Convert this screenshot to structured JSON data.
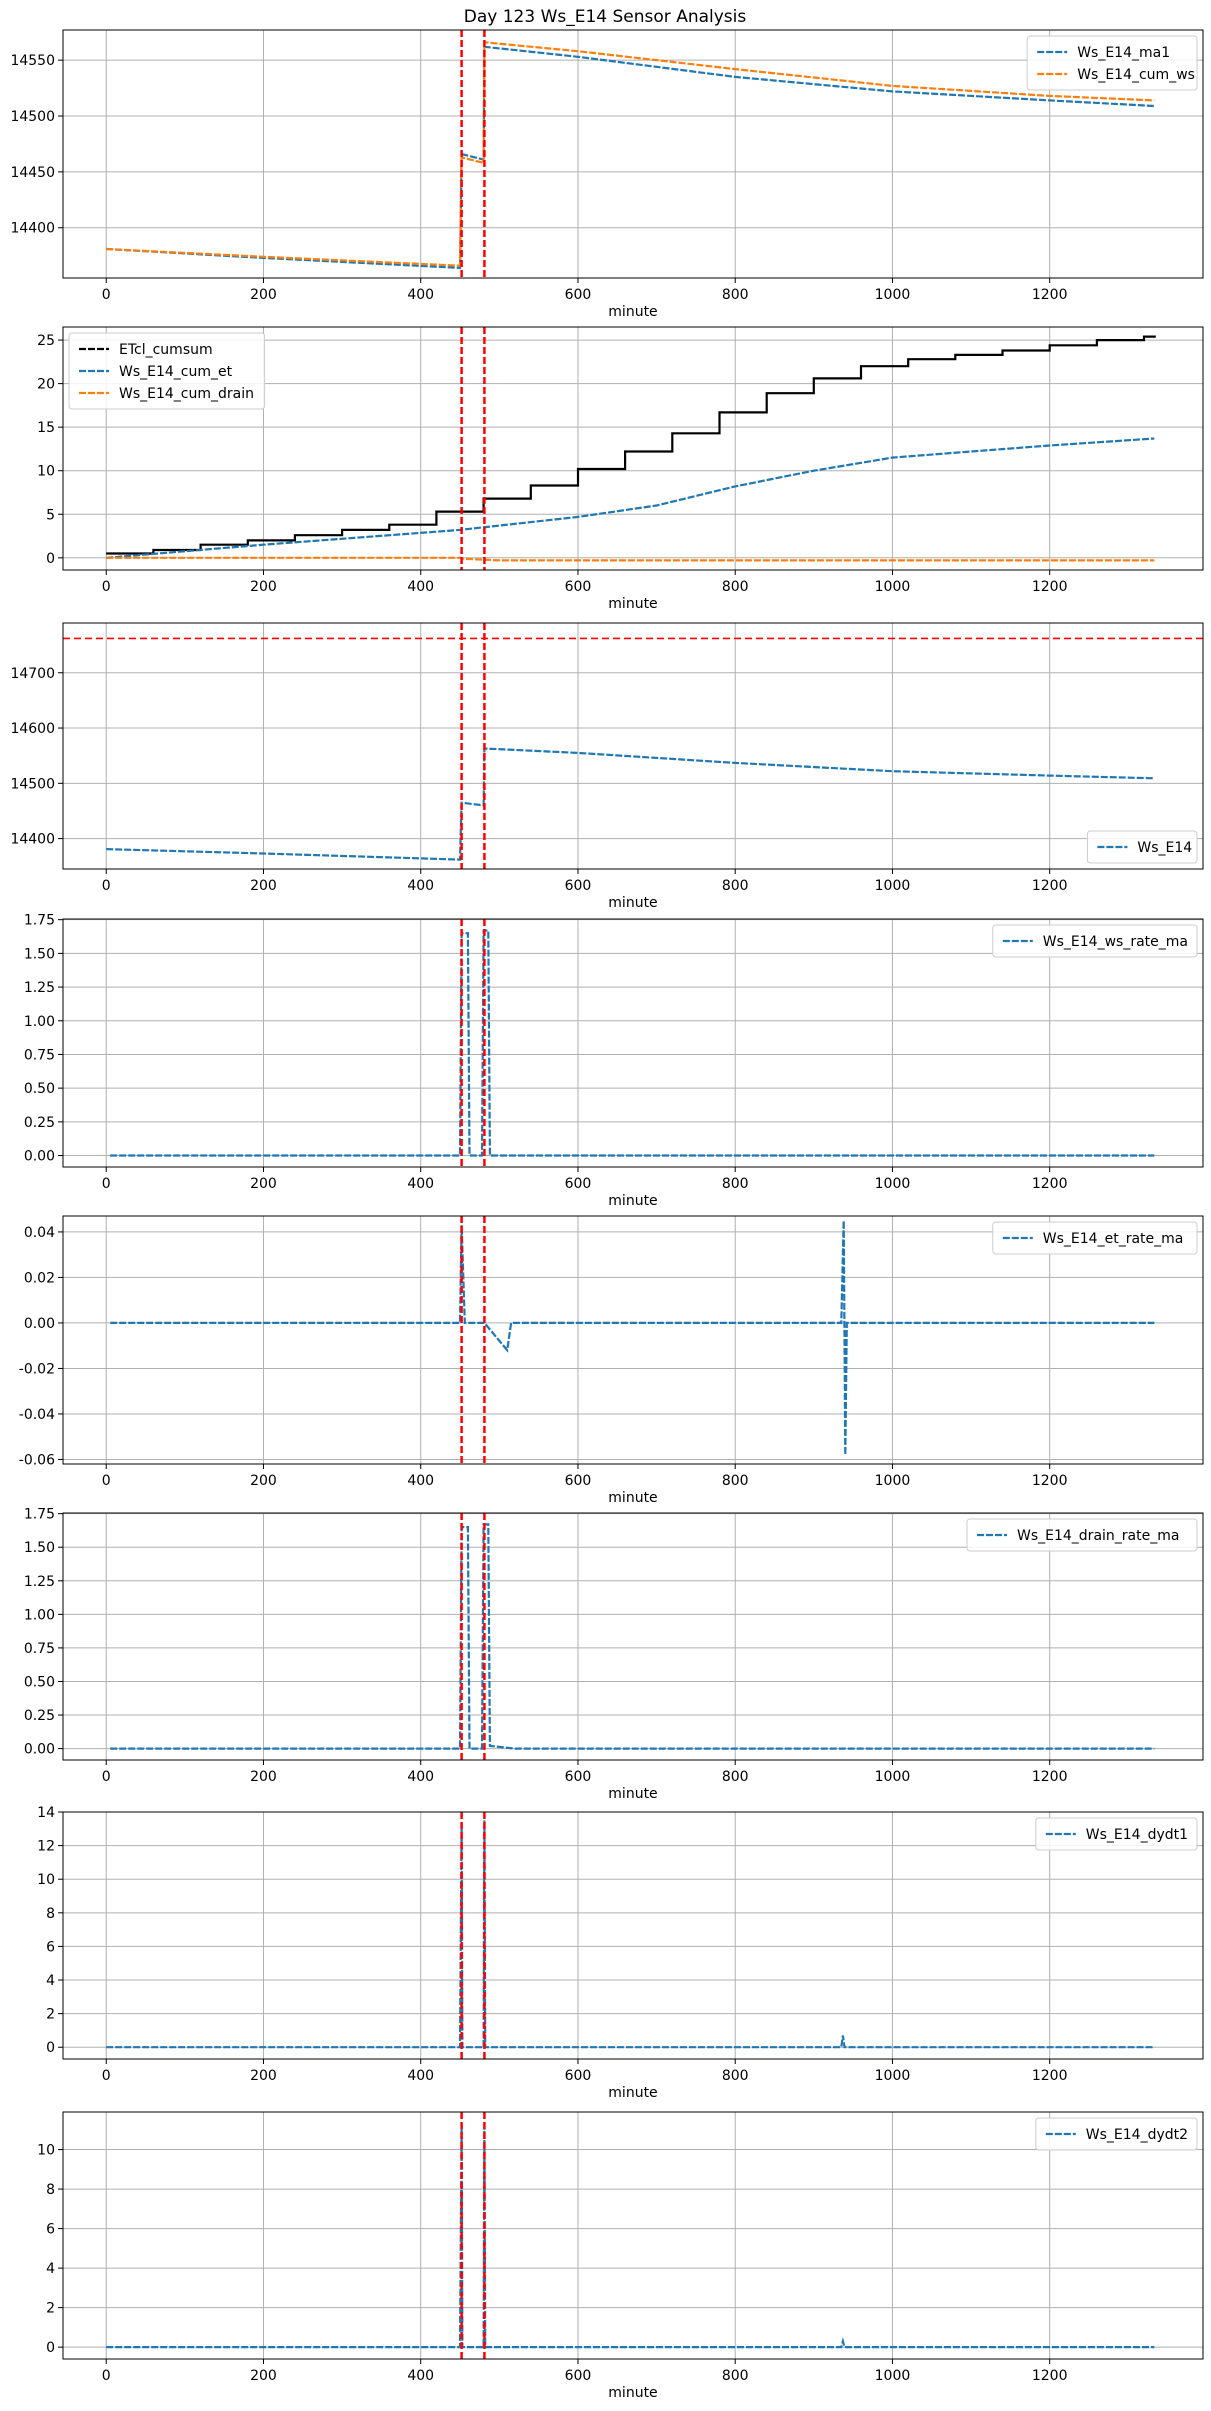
{
  "page_title": "Day 123 Ws_E14 Sensor Analysis",
  "colors": {
    "blue": "#1f77b4",
    "orange": "#ff7f0e",
    "black": "#000000",
    "red": "#ff0000",
    "grid": "#b0b0b0"
  },
  "chart_data": [
    {
      "type": "line",
      "xlabel": "minute",
      "xlim": [
        -55,
        1395
      ],
      "xticks": [
        0,
        200,
        400,
        600,
        800,
        1000,
        1200
      ],
      "ylim": [
        14355,
        14577
      ],
      "yticks": [
        14400,
        14450,
        14500,
        14550
      ],
      "vlines": [
        452,
        481
      ],
      "legend_position": "top-right",
      "series": [
        {
          "name": "Ws_E14_ma1",
          "color": "blue",
          "points": [
            [
              0,
              14381
            ],
            [
              200,
              14373
            ],
            [
              450,
              14364
            ],
            [
              452,
              14466
            ],
            [
              480,
              14461
            ],
            [
              481,
              14562
            ],
            [
              600,
              14553
            ],
            [
              800,
              14535
            ],
            [
              1000,
              14522
            ],
            [
              1200,
              14514
            ],
            [
              1333,
              14509
            ]
          ]
        },
        {
          "name": "Ws_E14_cum_ws",
          "color": "orange",
          "points": [
            [
              0,
              14381
            ],
            [
              200,
              14374
            ],
            [
              450,
              14366
            ],
            [
              452,
              14463
            ],
            [
              480,
              14458
            ],
            [
              481,
              14566
            ],
            [
              600,
              14558
            ],
            [
              800,
              14542
            ],
            [
              1000,
              14527
            ],
            [
              1200,
              14518
            ],
            [
              1333,
              14514
            ]
          ]
        }
      ]
    },
    {
      "type": "line",
      "xlabel": "minute",
      "xlim": [
        -55,
        1395
      ],
      "xticks": [
        0,
        200,
        400,
        600,
        800,
        1000,
        1200
      ],
      "ylim": [
        -1.4,
        26.5
      ],
      "yticks": [
        0,
        5,
        10,
        15,
        20,
        25
      ],
      "vlines": [
        452,
        481
      ],
      "legend_position": "top-left",
      "series": [
        {
          "name": "ETcl_cumsum",
          "color": "black",
          "step": true,
          "points": [
            [
              0,
              0.5
            ],
            [
              60,
              0.9
            ],
            [
              120,
              1.5
            ],
            [
              180,
              2.0
            ],
            [
              240,
              2.6
            ],
            [
              300,
              3.2
            ],
            [
              360,
              3.8
            ],
            [
              420,
              5.3
            ],
            [
              480,
              6.8
            ],
            [
              540,
              8.3
            ],
            [
              600,
              10.2
            ],
            [
              660,
              12.2
            ],
            [
              720,
              14.3
            ],
            [
              780,
              16.7
            ],
            [
              840,
              18.9
            ],
            [
              900,
              20.6
            ],
            [
              960,
              22.0
            ],
            [
              1020,
              22.8
            ],
            [
              1080,
              23.3
            ],
            [
              1140,
              23.8
            ],
            [
              1200,
              24.4
            ],
            [
              1260,
              25.0
            ],
            [
              1320,
              25.4
            ],
            [
              1335,
              25.4
            ]
          ]
        },
        {
          "name": "Ws_E14_cum_et",
          "color": "blue",
          "points": [
            [
              0,
              0
            ],
            [
              200,
              1.5
            ],
            [
              450,
              3.2
            ],
            [
              600,
              4.7
            ],
            [
              700,
              6.0
            ],
            [
              800,
              8.2
            ],
            [
              900,
              10.0
            ],
            [
              1000,
              11.5
            ],
            [
              1100,
              12.2
            ],
            [
              1200,
              12.9
            ],
            [
              1333,
              13.7
            ]
          ]
        },
        {
          "name": "Ws_E14_cum_drain",
          "color": "orange",
          "points": [
            [
              0,
              0
            ],
            [
              450,
              0
            ],
            [
              452,
              -0.1
            ],
            [
              500,
              -0.3
            ],
            [
              1333,
              -0.3
            ]
          ]
        }
      ]
    },
    {
      "type": "line",
      "xlabel": "minute",
      "xlim": [
        -55,
        1395
      ],
      "xticks": [
        0,
        200,
        400,
        600,
        800,
        1000,
        1200
      ],
      "ylim": [
        14345,
        14790
      ],
      "yticks": [
        14400,
        14500,
        14600,
        14700
      ],
      "vlines": [
        452,
        481
      ],
      "hline": 14762,
      "legend_position": "bottom-right",
      "series": [
        {
          "name": "Ws_E14",
          "color": "blue",
          "points": [
            [
              0,
              14381
            ],
            [
              200,
              14373
            ],
            [
              450,
              14362
            ],
            [
              452,
              14465
            ],
            [
              480,
              14460
            ],
            [
              481,
              14563
            ],
            [
              600,
              14555
            ],
            [
              800,
              14537
            ],
            [
              1000,
              14522
            ],
            [
              1200,
              14514
            ],
            [
              1333,
              14509
            ]
          ]
        }
      ]
    },
    {
      "type": "line",
      "xlabel": "minute",
      "xlim": [
        -55,
        1395
      ],
      "xticks": [
        0,
        200,
        400,
        600,
        800,
        1000,
        1200
      ],
      "ylim": [
        -0.085,
        1.755
      ],
      "yticks": [
        0.0,
        0.25,
        0.5,
        0.75,
        1.0,
        1.25,
        1.5,
        1.75
      ],
      "ytick_format": 2,
      "vlines": [
        452,
        481
      ],
      "legend_position": "top-right",
      "series": [
        {
          "name": "Ws_E14_ws_rate_ma",
          "color": "blue",
          "points": [
            [
              5,
              0
            ],
            [
              450,
              0
            ],
            [
              452,
              1.65
            ],
            [
              460,
              1.65
            ],
            [
              462,
              0
            ],
            [
              478,
              0
            ],
            [
              480,
              1.67
            ],
            [
              486,
              1.67
            ],
            [
              488,
              0
            ],
            [
              1333,
              0
            ]
          ]
        }
      ]
    },
    {
      "type": "line",
      "xlabel": "minute",
      "xlim": [
        -55,
        1395
      ],
      "xticks": [
        0,
        200,
        400,
        600,
        800,
        1000,
        1200
      ],
      "ylim": [
        -0.062,
        0.047
      ],
      "yticks": [
        -0.06,
        -0.04,
        -0.02,
        0.0,
        0.02,
        0.04
      ],
      "ytick_format": 2,
      "vlines": [
        452,
        481
      ],
      "legend_position": "top-right",
      "series": [
        {
          "name": "Ws_E14_et_rate_ma",
          "color": "blue",
          "points": [
            [
              5,
              0
            ],
            [
              450,
              0
            ],
            [
              452,
              0.043
            ],
            [
              456,
              0
            ],
            [
              481,
              0
            ],
            [
              510,
              -0.012
            ],
            [
              515,
              0
            ],
            [
              935,
              0
            ],
            [
              938,
              0.045
            ],
            [
              940,
              -0.058
            ],
            [
              942,
              0
            ],
            [
              1333,
              0
            ]
          ]
        }
      ]
    },
    {
      "type": "line",
      "xlabel": "minute",
      "xlim": [
        -55,
        1395
      ],
      "xticks": [
        0,
        200,
        400,
        600,
        800,
        1000,
        1200
      ],
      "ylim": [
        -0.085,
        1.755
      ],
      "yticks": [
        0.0,
        0.25,
        0.5,
        0.75,
        1.0,
        1.25,
        1.5,
        1.75
      ],
      "ytick_format": 2,
      "vlines": [
        452,
        481
      ],
      "legend_position": "top-right",
      "series": [
        {
          "name": "Ws_E14_drain_rate_ma",
          "color": "blue",
          "points": [
            [
              5,
              0
            ],
            [
              450,
              0
            ],
            [
              452,
              1.65
            ],
            [
              460,
              1.65
            ],
            [
              462,
              0
            ],
            [
              478,
              0
            ],
            [
              480,
              1.67
            ],
            [
              486,
              1.67
            ],
            [
              488,
              0.02
            ],
            [
              520,
              0
            ],
            [
              1333,
              0
            ]
          ]
        }
      ]
    },
    {
      "type": "line",
      "xlabel": "minute",
      "xlim": [
        -55,
        1395
      ],
      "xticks": [
        0,
        200,
        400,
        600,
        800,
        1000,
        1200
      ],
      "ylim": [
        -0.7,
        14
      ],
      "yticks": [
        0,
        2,
        4,
        6,
        8,
        10,
        12,
        14
      ],
      "vlines": [
        452,
        481
      ],
      "legend_position": "top-right",
      "series": [
        {
          "name": "Ws_E14_dydt1",
          "color": "blue",
          "points": [
            [
              0,
              0
            ],
            [
              450,
              0
            ],
            [
              452,
              13.2
            ],
            [
              453,
              0
            ],
            [
              480,
              0
            ],
            [
              481,
              13.5
            ],
            [
              482,
              0
            ],
            [
              935,
              0
            ],
            [
              937,
              0.7
            ],
            [
              939,
              0
            ],
            [
              1333,
              0
            ]
          ]
        }
      ]
    },
    {
      "type": "line",
      "xlabel": "minute",
      "xlim": [
        -55,
        1395
      ],
      "xticks": [
        0,
        200,
        400,
        600,
        800,
        1000,
        1200
      ],
      "ylim": [
        -0.6,
        11.9
      ],
      "yticks": [
        0,
        2,
        4,
        6,
        8,
        10
      ],
      "vlines": [
        452,
        481
      ],
      "legend_position": "top-right",
      "series": [
        {
          "name": "Ws_E14_dydt2",
          "color": "blue",
          "points": [
            [
              0,
              0
            ],
            [
              450,
              0
            ],
            [
              452,
              11.2
            ],
            [
              453,
              0
            ],
            [
              480,
              0
            ],
            [
              481,
              11.2
            ],
            [
              482,
              0
            ],
            [
              935,
              0
            ],
            [
              937,
              0.3
            ],
            [
              939,
              0
            ],
            [
              1333,
              0
            ]
          ]
        }
      ]
    }
  ]
}
